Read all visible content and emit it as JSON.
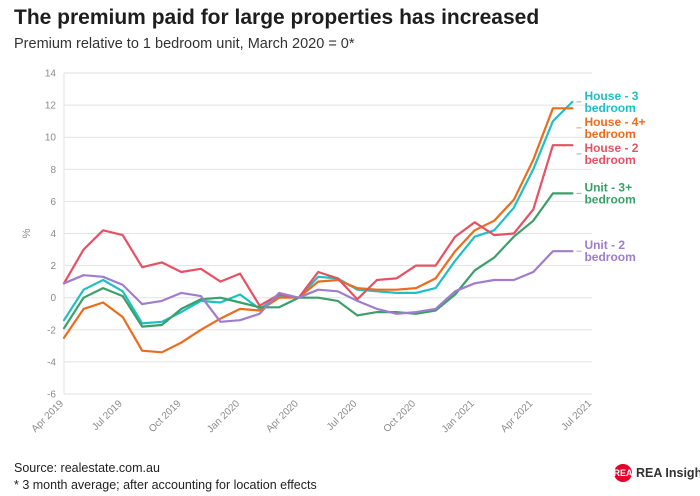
{
  "title": "The premium paid for large properties has increased",
  "subtitle": "Premium relative to 1 bedroom unit, March 2020 = 0*",
  "source": "Source: realestate.com.au",
  "note": "* 3 month average; after accounting for location effects",
  "logo": {
    "mark": "REA",
    "text": "REA Insights"
  },
  "chart_data": {
    "type": "line",
    "ylabel": "%",
    "ylim": [
      -6,
      14
    ],
    "yticks": [
      -6,
      -4,
      -2,
      0,
      2,
      4,
      6,
      8,
      10,
      12,
      14
    ],
    "grid": true,
    "legend": "end-labels",
    "xlim": [
      "2019-04",
      "2021-07"
    ],
    "xtick_labels": [
      "Apr 2019",
      "Jul 2019",
      "Oct 2019",
      "Jan 2020",
      "Apr 2020",
      "Jul 2020",
      "Oct 2020",
      "Jan 2021",
      "Apr 2021",
      "Jul 2021"
    ],
    "x": [
      "2019-04",
      "2019-05",
      "2019-06",
      "2019-07",
      "2019-08",
      "2019-09",
      "2019-10",
      "2019-11",
      "2019-12",
      "2020-01",
      "2020-02",
      "2020-03",
      "2020-04",
      "2020-05",
      "2020-06",
      "2020-07",
      "2020-08",
      "2020-09",
      "2020-10",
      "2020-11",
      "2020-12",
      "2021-01",
      "2021-02",
      "2021-03",
      "2021-04",
      "2021-05",
      "2021-06"
    ],
    "series": [
      {
        "name": "House - 3 bedroom",
        "label_lines": [
          "House - 3",
          "bedroom"
        ],
        "color": "#1ec0c5",
        "values": [
          -1.4,
          0.5,
          1.1,
          0.4,
          -1.6,
          -1.5,
          -0.9,
          -0.2,
          -0.3,
          0.2,
          -0.7,
          0.1,
          0.0,
          1.3,
          1.2,
          0.5,
          0.4,
          0.3,
          0.3,
          0.6,
          2.3,
          3.8,
          4.2,
          5.6,
          8.0,
          11.0,
          12.2
        ]
      },
      {
        "name": "House - 4+ bedroom",
        "label_lines": [
          "House - 4+",
          "bedroom"
        ],
        "color": "#ec6c1c",
        "values": [
          -2.5,
          -0.7,
          -0.3,
          -1.2,
          -3.3,
          -3.4,
          -2.8,
          -2.0,
          -1.3,
          -0.7,
          -0.8,
          0.0,
          0.0,
          1.0,
          1.1,
          0.6,
          0.5,
          0.5,
          0.6,
          1.2,
          2.9,
          4.2,
          4.8,
          6.1,
          8.6,
          11.8,
          11.8
        ]
      },
      {
        "name": "House - 2 bedroom",
        "label_lines": [
          "House - 2",
          "bedroom"
        ],
        "color": "#e65163",
        "values": [
          0.9,
          3.0,
          4.2,
          3.9,
          1.9,
          2.2,
          1.6,
          1.8,
          1.0,
          1.5,
          -0.5,
          0.2,
          0.0,
          1.6,
          1.2,
          -0.1,
          1.1,
          1.2,
          2.0,
          2.0,
          3.8,
          4.7,
          3.9,
          4.0,
          5.5,
          9.5,
          9.5
        ]
      },
      {
        "name": "Unit - 3+ bedroom",
        "label_lines": [
          "Unit - 3+",
          "bedroom"
        ],
        "color": "#3c9f69",
        "values": [
          -1.9,
          0.0,
          0.6,
          0.1,
          -1.8,
          -1.7,
          -0.7,
          -0.1,
          0.0,
          -0.3,
          -0.6,
          -0.6,
          0.0,
          0.0,
          -0.2,
          -1.1,
          -0.9,
          -0.9,
          -1.0,
          -0.8,
          0.2,
          1.7,
          2.5,
          3.8,
          4.8,
          6.5,
          6.5
        ]
      },
      {
        "name": "Unit - 2 bedroom",
        "label_lines": [
          "Unit - 2",
          "bedroom"
        ],
        "color": "#9f7dcd",
        "values": [
          0.9,
          1.4,
          1.3,
          0.8,
          -0.4,
          -0.2,
          0.3,
          0.1,
          -1.5,
          -1.4,
          -1.0,
          0.3,
          0.0,
          0.5,
          0.4,
          -0.2,
          -0.7,
          -1.0,
          -0.9,
          -0.7,
          0.4,
          0.9,
          1.1,
          1.1,
          1.6,
          2.9,
          2.9
        ]
      }
    ]
  }
}
